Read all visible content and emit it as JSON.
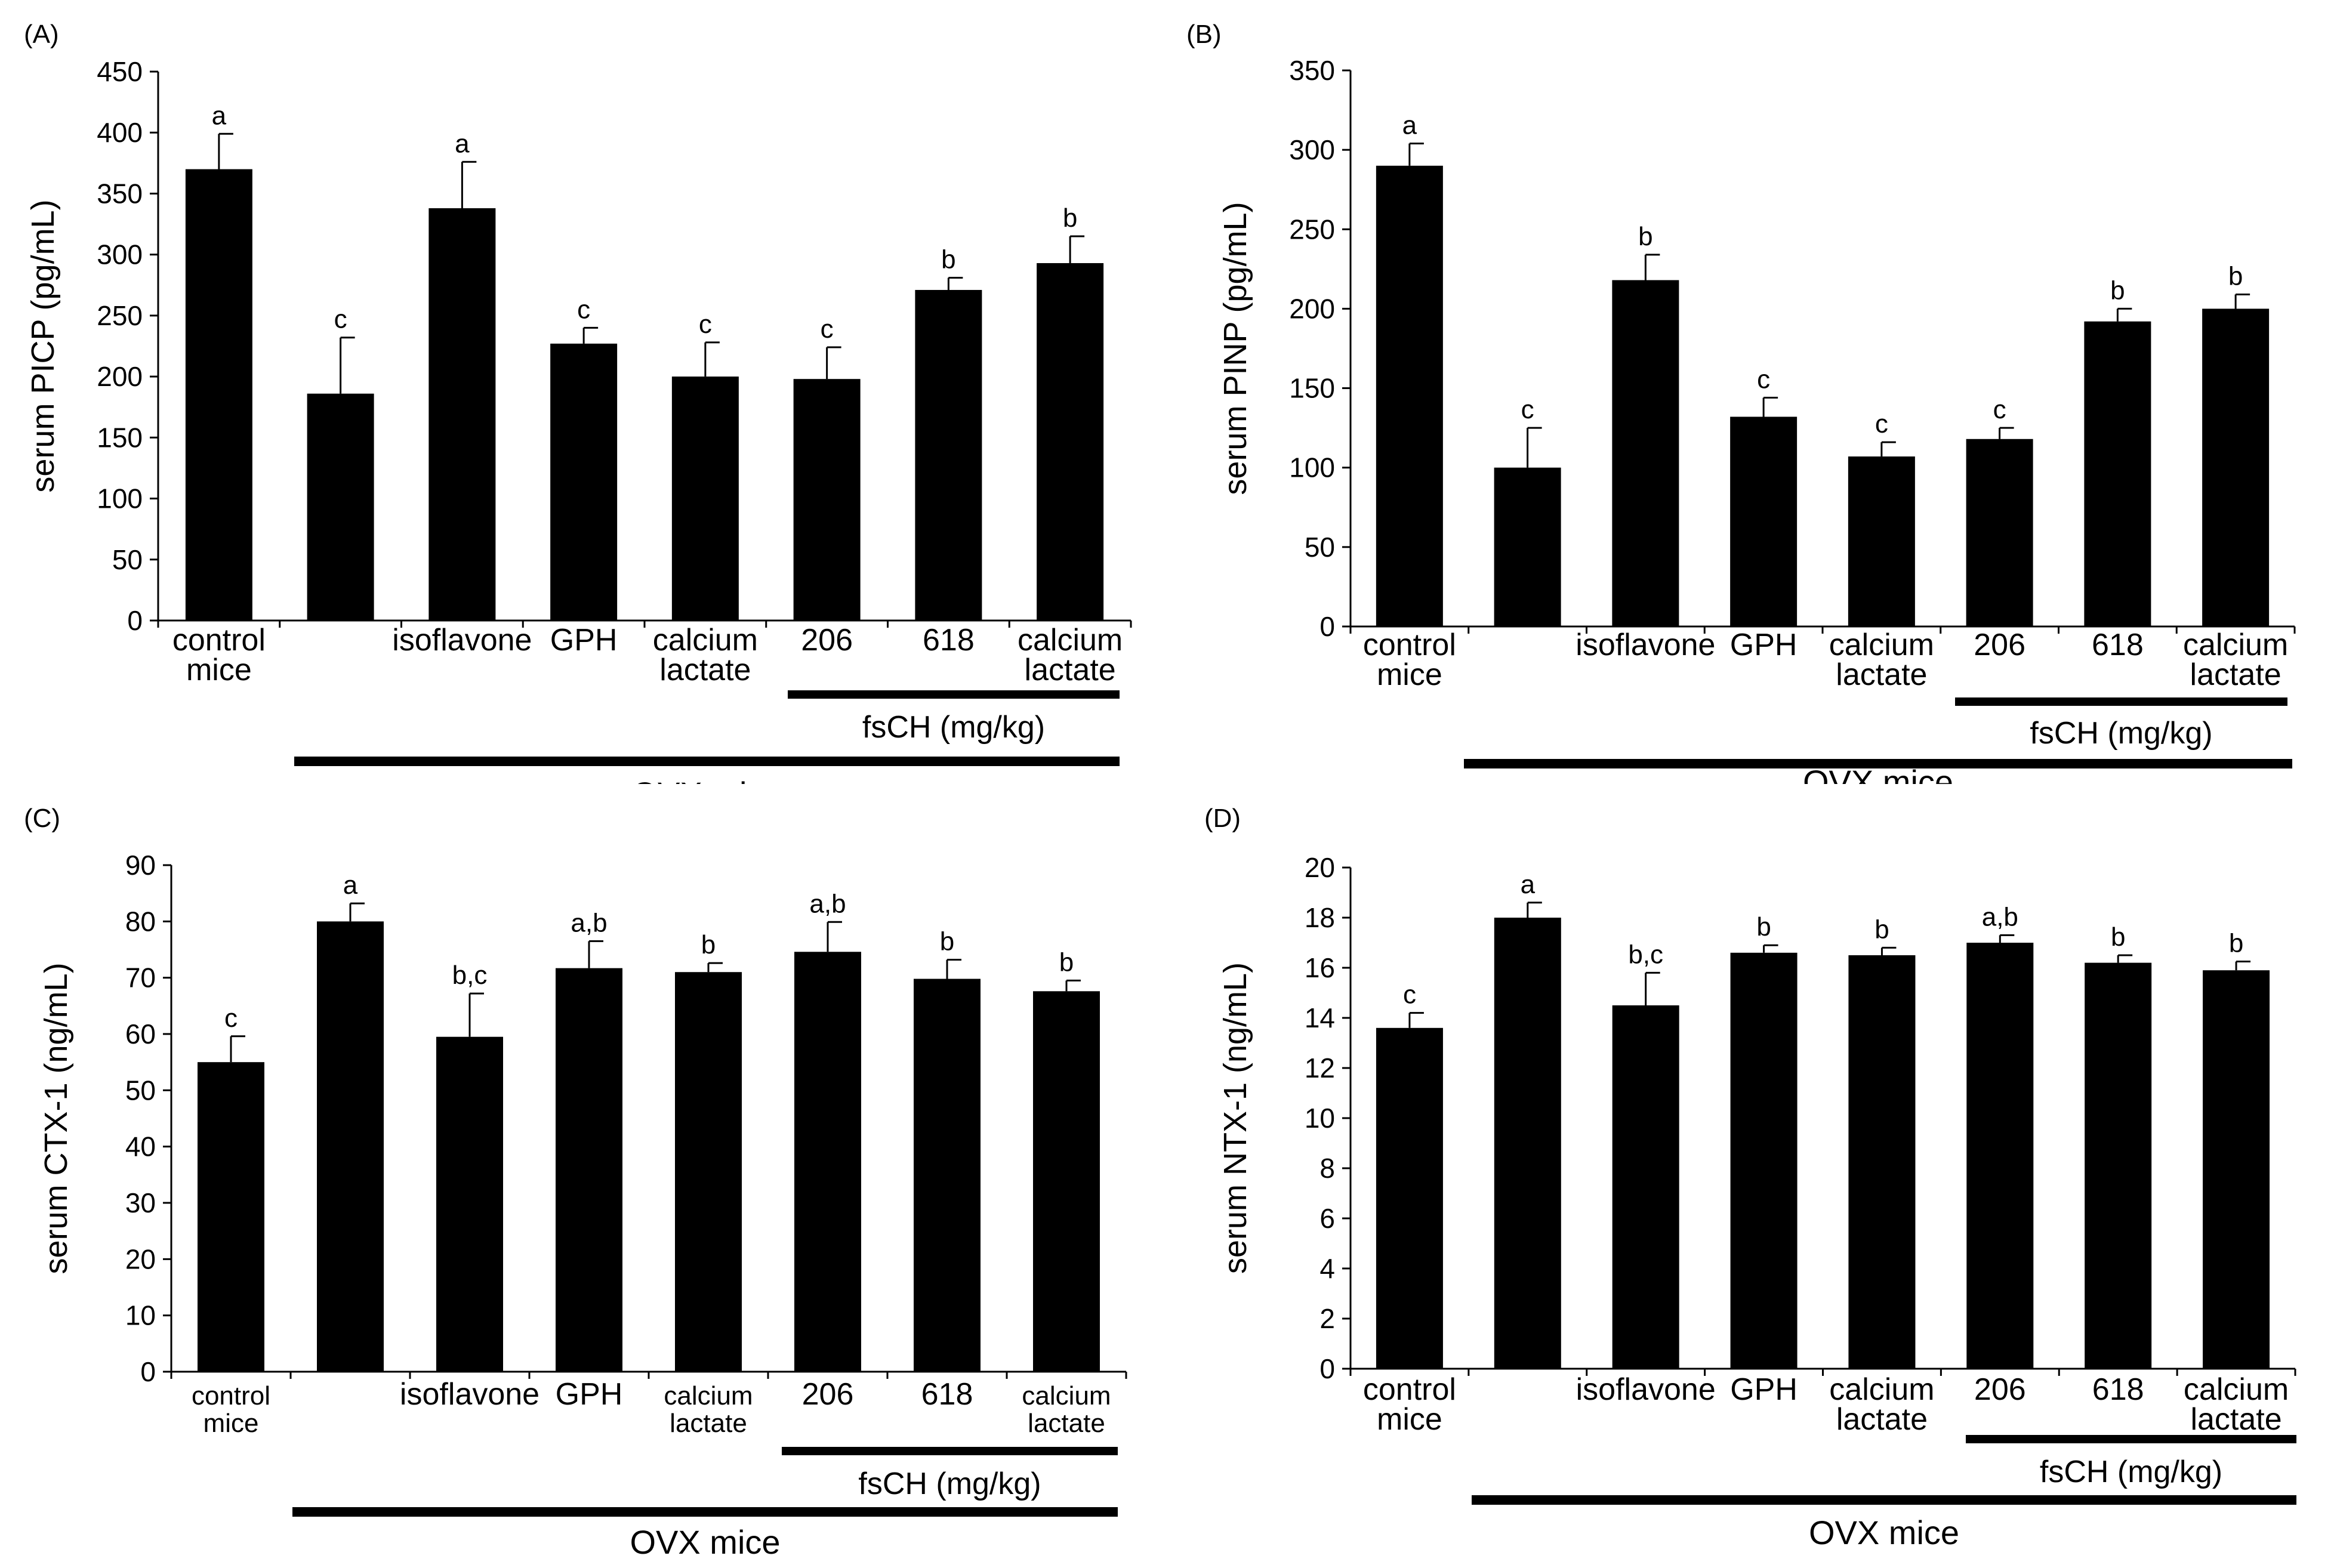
{
  "colors": {
    "bar": "#000000",
    "axis": "#000000",
    "background": "#ffffff"
  },
  "chart_data": [
    {
      "type": "bar",
      "panel_label": "(A)",
      "title": "",
      "xlabel": "",
      "ylabel": "serum PICP (pg/mL)",
      "ylim": [
        0,
        450
      ],
      "yticks": [
        0,
        50,
        100,
        150,
        200,
        250,
        300,
        350,
        400,
        450
      ],
      "categories": [
        [
          "control",
          "mice"
        ],
        [
          ""
        ],
        [
          "isoflavone"
        ],
        [
          "GPH"
        ],
        [
          "calcium",
          "lactate"
        ],
        [
          "206"
        ],
        [
          "618"
        ],
        [
          "calcium",
          "lactate"
        ]
      ],
      "values": [
        370,
        186,
        338,
        227,
        200,
        198,
        271,
        293
      ],
      "errors": [
        29,
        46,
        38,
        13,
        28,
        26,
        10,
        22
      ],
      "significance": [
        "a",
        "c",
        "a",
        "c",
        "c",
        "c",
        "b",
        "b"
      ],
      "group_labels": {
        "dose": "fsCH (mg/kg)",
        "ovx": "OVX mice"
      }
    },
    {
      "type": "bar",
      "panel_label": "(B)",
      "title": "",
      "xlabel": "",
      "ylabel": "serum PINP (pg/mL)",
      "ylim": [
        0,
        350
      ],
      "yticks": [
        0,
        50,
        100,
        150,
        200,
        250,
        300,
        350
      ],
      "categories": [
        [
          "control",
          "mice"
        ],
        [
          ""
        ],
        [
          "isoflavone"
        ],
        [
          "GPH"
        ],
        [
          "calcium",
          "lactate"
        ],
        [
          "206"
        ],
        [
          "618"
        ],
        [
          "calcium",
          "lactate"
        ]
      ],
      "values": [
        290,
        100,
        218,
        132,
        107,
        118,
        192,
        200
      ],
      "errors": [
        14,
        25,
        16,
        12,
        9,
        7,
        8,
        9
      ],
      "significance": [
        "a",
        "c",
        "b",
        "c",
        "c",
        "c",
        "b",
        "b"
      ],
      "group_labels": {
        "dose": "fsCH (mg/kg)",
        "ovx": "OVX mice"
      }
    },
    {
      "type": "bar",
      "panel_label": "(C)",
      "title": "",
      "xlabel": "",
      "ylabel": "serum CTX-1 (ng/mL)",
      "ylim": [
        0,
        90
      ],
      "yticks": [
        0,
        10,
        20,
        30,
        40,
        50,
        60,
        70,
        80,
        90
      ],
      "categories": [
        [
          "control",
          "mice"
        ],
        [
          ""
        ],
        [
          "isoflavone"
        ],
        [
          "GPH"
        ],
        [
          "calcium",
          "lactate"
        ],
        [
          "206"
        ],
        [
          "618"
        ],
        [
          "calcium",
          "lactate"
        ]
      ],
      "values": [
        55,
        80,
        59.5,
        71.7,
        71,
        74.6,
        69.8,
        67.6
      ],
      "errors": [
        4.6,
        3.2,
        7.7,
        4.8,
        1.6,
        5.3,
        3.4,
        1.9
      ],
      "significance": [
        "c",
        "a",
        "b,c",
        "a,b",
        "b",
        "a,b",
        "b",
        "b"
      ],
      "group_labels": {
        "dose": "fsCH (mg/kg)",
        "ovx": "OVX mice"
      }
    },
    {
      "type": "bar",
      "panel_label": "(D)",
      "title": "",
      "xlabel": "",
      "ylabel": "serum NTX-1 (ng/mL)",
      "ylim": [
        0,
        20
      ],
      "yticks": [
        0,
        2,
        4,
        6,
        8,
        10,
        12,
        14,
        16,
        18,
        20
      ],
      "categories": [
        [
          "control",
          "mice"
        ],
        [
          ""
        ],
        [
          "isoflavone"
        ],
        [
          "GPH"
        ],
        [
          "calcium",
          "lactate"
        ],
        [
          "206"
        ],
        [
          "618"
        ],
        [
          "calcium",
          "lactate"
        ]
      ],
      "values": [
        13.6,
        18,
        14.5,
        16.6,
        16.5,
        17,
        16.2,
        15.9
      ],
      "errors": [
        0.6,
        0.6,
        1.3,
        0.3,
        0.3,
        0.3,
        0.3,
        0.35
      ],
      "significance": [
        "c",
        "a",
        "b,c",
        "b",
        "b",
        "a,b",
        "b",
        "b"
      ],
      "group_labels": {
        "dose": "fsCH (mg/kg)",
        "ovx": "OVX mice"
      }
    }
  ]
}
